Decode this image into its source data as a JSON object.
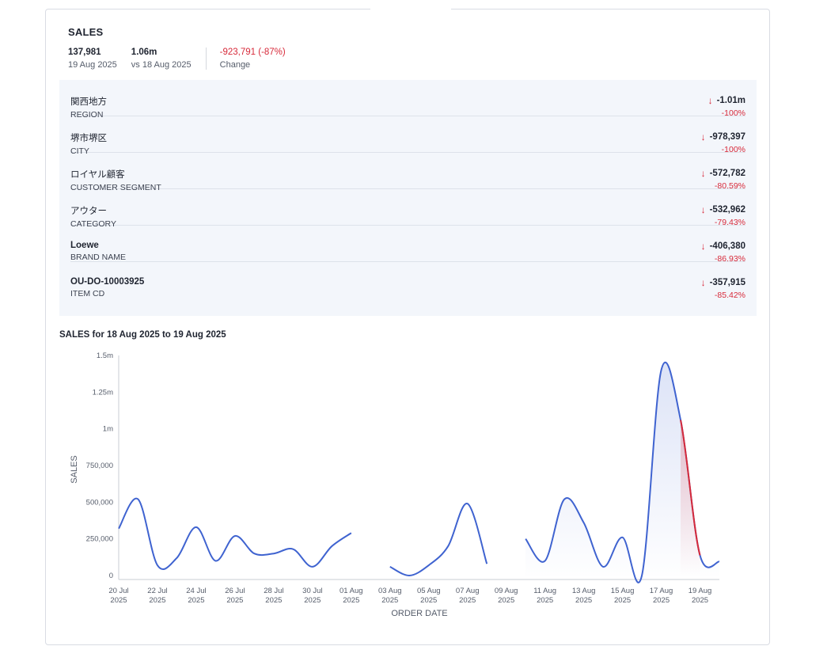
{
  "header": {
    "title": "SALES",
    "current_value": "137,981",
    "current_label": "19 Aug 2025",
    "prev_value": "1.06m",
    "prev_label": "vs 18 Aug 2025",
    "change_value": "-923,791 (-87%)",
    "change_label": "Change"
  },
  "drivers": [
    {
      "name": "関西地方",
      "dimension": "REGION",
      "value": "-1.01m",
      "pct": "-100%",
      "bold": false
    },
    {
      "name": "堺市堺区",
      "dimension": "CITY",
      "value": "-978,397",
      "pct": "-100%",
      "bold": false
    },
    {
      "name": "ロイヤル顧客",
      "dimension": "CUSTOMER SEGMENT",
      "value": "-572,782",
      "pct": "-80.59%",
      "bold": false
    },
    {
      "name": "アウター",
      "dimension": "CATEGORY",
      "value": "-532,962",
      "pct": "-79.43%",
      "bold": false
    },
    {
      "name": "Loewe",
      "dimension": "BRAND NAME",
      "value": "-406,380",
      "pct": "-86.93%",
      "bold": true
    },
    {
      "name": "OU-DO-10003925",
      "dimension": "ITEM CD",
      "value": "-357,915",
      "pct": "-85.42%",
      "bold": true
    }
  ],
  "icons": {
    "down_arrow": "arrow-down-icon"
  },
  "colors": {
    "line": "#3f63d0",
    "highlight": "#d72a3a",
    "negative": "#d72a3a"
  },
  "chart_data": {
    "type": "line",
    "title": "SALES for 18 Aug 2025 to 19 Aug 2025",
    "xlabel": "ORDER DATE",
    "ylabel": "SALES",
    "ylim": [
      0,
      1500000
    ],
    "yticks": [
      0,
      250000,
      500000,
      750000,
      1000000,
      1250000,
      1500000
    ],
    "ytick_labels": [
      "0",
      "250,000",
      "500,000",
      "750,000",
      "1m",
      "1.25m",
      "1.5m"
    ],
    "xticks": [
      {
        "x": "2025-07-20",
        "label": [
          "20 Jul",
          "2025"
        ]
      },
      {
        "x": "2025-07-22",
        "label": [
          "22 Jul",
          "2025"
        ]
      },
      {
        "x": "2025-07-24",
        "label": [
          "24 Jul",
          "2025"
        ]
      },
      {
        "x": "2025-07-26",
        "label": [
          "26 Jul",
          "2025"
        ]
      },
      {
        "x": "2025-07-28",
        "label": [
          "28 Jul",
          "2025"
        ]
      },
      {
        "x": "2025-07-30",
        "label": [
          "30 Jul",
          "2025"
        ]
      },
      {
        "x": "2025-08-01",
        "label": [
          "01 Aug",
          "2025"
        ]
      },
      {
        "x": "2025-08-03",
        "label": [
          "03 Aug",
          "2025"
        ]
      },
      {
        "x": "2025-08-05",
        "label": [
          "05 Aug",
          "2025"
        ]
      },
      {
        "x": "2025-08-07",
        "label": [
          "07 Aug",
          "2025"
        ]
      },
      {
        "x": "2025-08-09",
        "label": [
          "09 Aug",
          "2025"
        ]
      },
      {
        "x": "2025-08-11",
        "label": [
          "11 Aug",
          "2025"
        ]
      },
      {
        "x": "2025-08-13",
        "label": [
          "13 Aug",
          "2025"
        ]
      },
      {
        "x": "2025-08-15",
        "label": [
          "15 Aug",
          "2025"
        ]
      },
      {
        "x": "2025-08-17",
        "label": [
          "17 Aug",
          "2025"
        ]
      },
      {
        "x": "2025-08-19",
        "label": [
          "19 Aug",
          "2025"
        ]
      }
    ],
    "x_range": [
      "2025-07-20",
      "2025-08-20"
    ],
    "series": [
      {
        "segments": [
          [
            {
              "x": "2025-07-20",
              "y": 320000
            },
            {
              "x": "2025-07-21",
              "y": 520000
            },
            {
              "x": "2025-07-22",
              "y": 70000
            },
            {
              "x": "2025-07-23",
              "y": 120000
            },
            {
              "x": "2025-07-24",
              "y": 330000
            },
            {
              "x": "2025-07-25",
              "y": 100000
            },
            {
              "x": "2025-07-26",
              "y": 270000
            },
            {
              "x": "2025-07-27",
              "y": 150000
            },
            {
              "x": "2025-07-28",
              "y": 150000
            },
            {
              "x": "2025-07-29",
              "y": 180000
            },
            {
              "x": "2025-07-30",
              "y": 60000
            },
            {
              "x": "2025-07-31",
              "y": 200000
            },
            {
              "x": "2025-08-01",
              "y": 290000
            }
          ],
          [
            {
              "x": "2025-08-03",
              "y": 60000
            },
            {
              "x": "2025-08-04",
              "y": 0
            },
            {
              "x": "2025-08-05",
              "y": 70000
            },
            {
              "x": "2025-08-06",
              "y": 200000
            },
            {
              "x": "2025-08-07",
              "y": 490000
            },
            {
              "x": "2025-08-08",
              "y": 80000
            }
          ],
          [
            {
              "x": "2025-08-10",
              "y": 250000
            },
            {
              "x": "2025-08-11",
              "y": 100000
            },
            {
              "x": "2025-08-12",
              "y": 520000
            },
            {
              "x": "2025-08-13",
              "y": 360000
            },
            {
              "x": "2025-08-14",
              "y": 60000
            },
            {
              "x": "2025-08-15",
              "y": 260000
            },
            {
              "x": "2025-08-16",
              "y": 0
            },
            {
              "x": "2025-08-17",
              "y": 1400000
            },
            {
              "x": "2025-08-18",
              "y": 1060000
            },
            {
              "x": "2025-08-19",
              "y": 137981
            },
            {
              "x": "2025-08-20",
              "y": 95000
            }
          ]
        ]
      }
    ],
    "highlight": {
      "from": "2025-08-18",
      "to": "2025-08-19"
    },
    "grid": false
  }
}
